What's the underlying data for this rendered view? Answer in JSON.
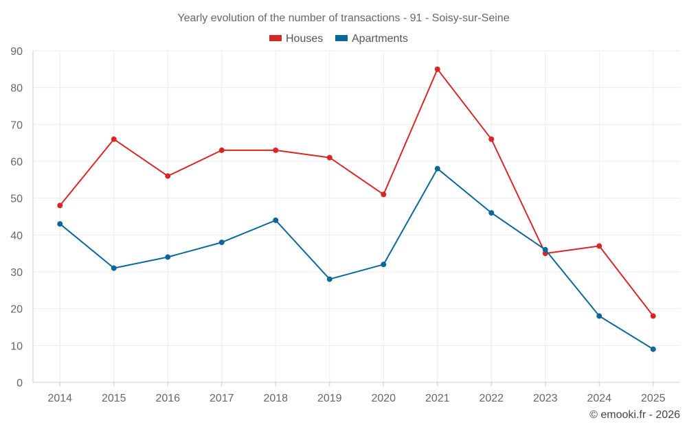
{
  "chart_data": {
    "type": "line",
    "title": "Yearly evolution of the number of transactions - 91 - Soisy-sur-Seine",
    "categories": [
      "2014",
      "2015",
      "2016",
      "2017",
      "2018",
      "2019",
      "2020",
      "2021",
      "2022",
      "2023",
      "2024",
      "2025"
    ],
    "series": [
      {
        "name": "Houses",
        "color": "#d62728",
        "values": [
          48,
          66,
          56,
          63,
          63,
          61,
          51,
          85,
          66,
          35,
          37,
          18
        ]
      },
      {
        "name": "Apartments",
        "color": "#0b6797",
        "values": [
          43,
          31,
          34,
          38,
          44,
          28,
          32,
          58,
          46,
          36,
          18,
          9
        ]
      }
    ],
    "ylim": [
      0,
      90
    ],
    "yticks": [
      "0",
      "10",
      "20",
      "30",
      "40",
      "50",
      "60",
      "70",
      "80",
      "90"
    ],
    "xlabel": "",
    "ylabel": "",
    "grid": true,
    "legend_position": "top-center"
  },
  "credit": "© emooki.fr - 2026"
}
